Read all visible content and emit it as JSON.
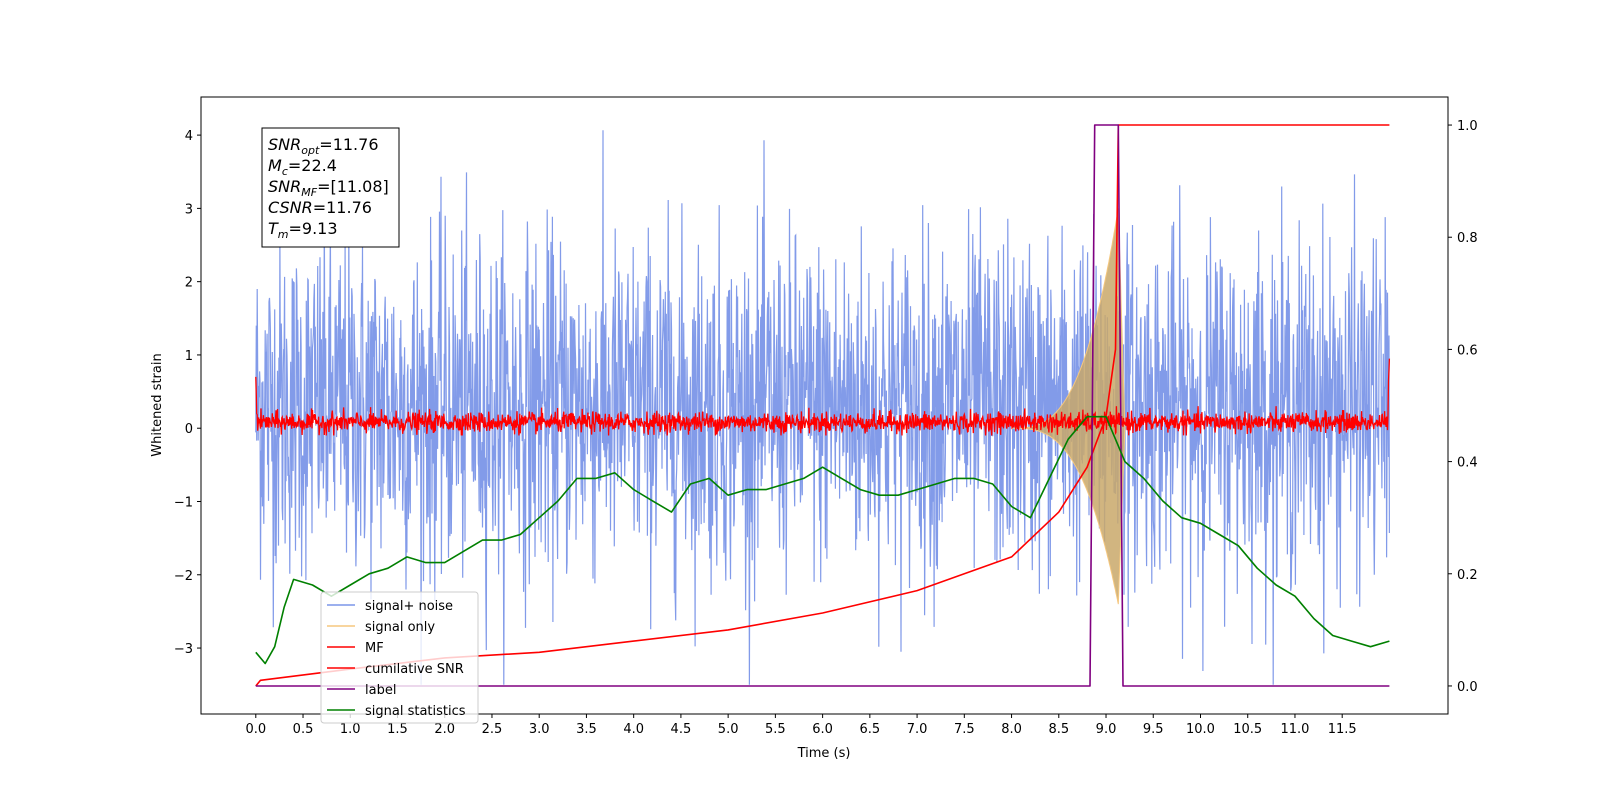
{
  "chart_data": {
    "type": "line",
    "title": "",
    "xlabel": "Time (s)",
    "ylabel": "Whitened strain",
    "xlim": [
      -0.58,
      12.62
    ],
    "ylim": [
      -3.9,
      4.52
    ],
    "y2lim": [
      -0.05,
      1.05
    ],
    "grid": false,
    "legend_position": "lower-left",
    "x_ticks": [
      "0.0",
      "0.5",
      "1.0",
      "1.5",
      "2.0",
      "2.5",
      "3.0",
      "3.5",
      "4.0",
      "4.5",
      "5.0",
      "5.5",
      "6.0",
      "6.5",
      "7.0",
      "7.5",
      "8.0",
      "8.5",
      "9.0",
      "9.5",
      "10.0",
      "10.5",
      "11.0",
      "11.5"
    ],
    "y_ticks": [
      "−3",
      "−2",
      "−1",
      "0",
      "1",
      "2",
      "3",
      "4"
    ],
    "y2_ticks": [
      "0.0",
      "0.2",
      "0.4",
      "0.6",
      "0.8",
      "1.0"
    ],
    "annotation": [
      {
        "label": "SNR",
        "sub": "opt",
        "value": "=11.76"
      },
      {
        "label": "M",
        "sub": "c",
        "value": "=22.4"
      },
      {
        "label": "SNR",
        "sub": "MF",
        "value": "=[11.08]"
      },
      {
        "label": "CSNR",
        "sub": "",
        "value": "=11.76"
      },
      {
        "label": "T",
        "sub": "m",
        "value": "=9.13"
      }
    ],
    "series": [
      {
        "name": "signal+ noise",
        "color": "#7b96e8",
        "axis": "left",
        "style": "noise",
        "x_range": [
          0,
          12
        ],
        "approx_mean": 0.3,
        "approx_range": [
          -3.5,
          4.2
        ]
      },
      {
        "name": "signal only",
        "color": "#f5c77e",
        "axis": "left",
        "style": "chirp",
        "x_range": [
          8.0,
          9.2
        ],
        "peak_time": 9.13,
        "peak_amplitude": 3.0
      },
      {
        "name": "MF",
        "color": "#ff0000",
        "axis": "left",
        "style": "band",
        "x_range": [
          0,
          12
        ],
        "approx_range": [
          -0.1,
          0.3
        ]
      },
      {
        "name": "cumilative SNR",
        "color": "#ff0000",
        "axis": "right",
        "style": "line",
        "x": [
          0.0,
          0.05,
          1.0,
          2.0,
          3.0,
          4.0,
          5.0,
          6.0,
          7.0,
          7.5,
          8.0,
          8.5,
          8.8,
          9.0,
          9.1,
          9.13,
          9.2,
          10.0,
          11.0,
          12.0
        ],
        "values": [
          0.0,
          0.01,
          0.03,
          0.05,
          0.06,
          0.08,
          0.1,
          0.13,
          0.17,
          0.2,
          0.23,
          0.31,
          0.39,
          0.48,
          0.6,
          1.0,
          1.0,
          1.0,
          1.0,
          1.0
        ]
      },
      {
        "name": "label",
        "color": "#800080",
        "axis": "right",
        "style": "line",
        "x": [
          0.0,
          8.83,
          8.88,
          9.13,
          9.18,
          12.0
        ],
        "values": [
          0.0,
          0.0,
          1.0,
          1.0,
          0.0,
          0.0
        ]
      },
      {
        "name": "signal statistics",
        "color": "#008000",
        "axis": "right",
        "style": "line",
        "x": [
          0.0,
          0.1,
          0.2,
          0.3,
          0.4,
          0.6,
          0.8,
          1.0,
          1.2,
          1.4,
          1.6,
          1.8,
          2.0,
          2.2,
          2.4,
          2.6,
          2.8,
          3.0,
          3.2,
          3.4,
          3.6,
          3.8,
          4.0,
          4.2,
          4.4,
          4.6,
          4.8,
          5.0,
          5.2,
          5.4,
          5.6,
          5.8,
          6.0,
          6.2,
          6.4,
          6.6,
          6.8,
          7.0,
          7.2,
          7.4,
          7.6,
          7.8,
          8.0,
          8.2,
          8.4,
          8.6,
          8.8,
          9.0,
          9.2,
          9.4,
          9.6,
          9.8,
          10.0,
          10.2,
          10.4,
          10.6,
          10.8,
          11.0,
          11.2,
          11.4,
          11.6,
          11.8,
          12.0
        ],
        "values": [
          0.06,
          0.04,
          0.07,
          0.14,
          0.19,
          0.18,
          0.16,
          0.18,
          0.2,
          0.21,
          0.23,
          0.22,
          0.22,
          0.24,
          0.26,
          0.26,
          0.27,
          0.3,
          0.33,
          0.37,
          0.37,
          0.38,
          0.35,
          0.33,
          0.31,
          0.36,
          0.37,
          0.34,
          0.35,
          0.35,
          0.36,
          0.37,
          0.39,
          0.37,
          0.35,
          0.34,
          0.34,
          0.35,
          0.36,
          0.37,
          0.37,
          0.36,
          0.32,
          0.3,
          0.37,
          0.44,
          0.48,
          0.48,
          0.4,
          0.37,
          0.33,
          0.3,
          0.29,
          0.27,
          0.25,
          0.21,
          0.18,
          0.16,
          0.12,
          0.09,
          0.08,
          0.07,
          0.08
        ]
      }
    ]
  }
}
